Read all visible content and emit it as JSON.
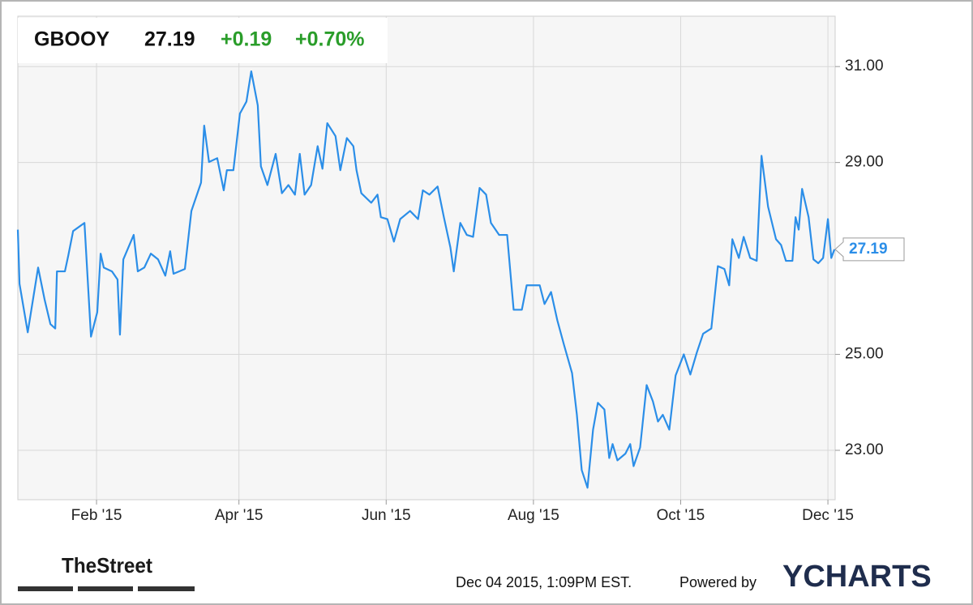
{
  "chart_data": {
    "type": "line",
    "header": {
      "ticker": "GBOOY",
      "price": "27.19",
      "change": "+0.19",
      "change_percent": "+0.70%"
    },
    "x": [
      -1.6,
      -0.9,
      2.5,
      6.8,
      9.5,
      11.9,
      13.9,
      14.6,
      17.9,
      19.3,
      21.3,
      26.0,
      28.7,
      31.3,
      32.7,
      34.0,
      37.4,
      39.7,
      40.7,
      42.1,
      46.4,
      48.1,
      50.8,
      53.5,
      56.5,
      59.5,
      61.5,
      62.9,
      67.6,
      70.3,
      74.3,
      75.6,
      77.6,
      81.0,
      83.7,
      85.0,
      87.7,
      90.4,
      93.1,
      95.1,
      97.8,
      99.1,
      101.8,
      105.2,
      107.8,
      110.5,
      113.2,
      115.2,
      117.2,
      119.9,
      122.6,
      124.6,
      126.6,
      130.0,
      132.0,
      134.7,
      137.4,
      138.7,
      140.7,
      144.8,
      147.4,
      148.8,
      151.5,
      154.2,
      156.8,
      160.9,
      164.2,
      166.2,
      168.9,
      172.3,
      174.9,
      177.6,
      179.0,
      181.7,
      184.4,
      187.0,
      189.7,
      192.4,
      194.4,
      197.8,
      201.1,
      203.8,
      207.2,
      209.2,
      214.6,
      216.6,
      219.3,
      221.9,
      224.6,
      228.0,
      230.0,
      232.0,
      234.4,
      236.7,
      238.7,
      241.4,
      243.4,
      244.8,
      246.8,
      250.1,
      252.1,
      253.5,
      256.2,
      258.9,
      261.5,
      263.6,
      265.6,
      268.3,
      270.9,
      274.3,
      277.0,
      279.7,
      282.3,
      285.7,
      288.4,
      291.1,
      293.1,
      294.4,
      297.1,
      299.1,
      301.8,
      304.5,
      306.5,
      309.2,
      312.5,
      314.6,
      316.6,
      319.3,
      320.6,
      321.9,
      323.3,
      326.0,
      328.0,
      330.0,
      332.0,
      334.0,
      335.4,
      336.7
    ],
    "series": [
      {
        "color": "#2b8ee8",
        "values": [
          27.6,
          26.47,
          25.46,
          26.81,
          26.14,
          25.63,
          25.54,
          26.73,
          26.73,
          27.06,
          27.57,
          27.74,
          25.37,
          25.88,
          27.1,
          26.81,
          26.73,
          26.56,
          25.41,
          26.98,
          27.49,
          26.73,
          26.81,
          27.1,
          26.98,
          26.64,
          27.15,
          26.68,
          26.78,
          27.99,
          28.58,
          29.77,
          29.01,
          29.09,
          28.42,
          28.84,
          28.84,
          30.02,
          30.27,
          30.9,
          30.19,
          28.92,
          28.53,
          29.18,
          28.36,
          28.53,
          28.33,
          29.18,
          28.33,
          28.53,
          29.34,
          28.87,
          29.82,
          29.55,
          28.84,
          29.51,
          29.34,
          28.84,
          28.36,
          28.16,
          28.33,
          27.86,
          27.82,
          27.35,
          27.82,
          27.99,
          27.82,
          28.42,
          28.33,
          28.5,
          27.86,
          27.23,
          26.73,
          27.74,
          27.49,
          27.45,
          28.47,
          28.33,
          27.74,
          27.49,
          27.49,
          25.93,
          25.93,
          26.44,
          26.44,
          26.05,
          26.3,
          25.71,
          25.21,
          24.61,
          23.74,
          22.59,
          22.22,
          23.43,
          23.99,
          23.85,
          22.84,
          23.13,
          22.79,
          22.93,
          23.13,
          22.67,
          23.06,
          24.36,
          24.02,
          23.6,
          23.74,
          23.43,
          24.56,
          25.0,
          24.58,
          25.04,
          25.43,
          25.54,
          26.84,
          26.78,
          26.44,
          27.4,
          27.01,
          27.45,
          27.01,
          26.95,
          29.14,
          28.08,
          27.4,
          27.28,
          26.95,
          26.95,
          27.86,
          27.6,
          28.45,
          27.86,
          26.98,
          26.9,
          27.01,
          27.82,
          27.01,
          27.19
        ]
      }
    ],
    "xlim": [
      -1.6,
      337
    ],
    "xticks": [
      {
        "value": 31,
        "label": "Feb '15"
      },
      {
        "value": 90,
        "label": "Apr '15"
      },
      {
        "value": 151,
        "label": "Jun '15"
      },
      {
        "value": 212,
        "label": "Aug '15"
      },
      {
        "value": 273,
        "label": "Oct '15"
      },
      {
        "value": 334,
        "label": "Dec '15"
      }
    ],
    "ylim": [
      21.97,
      32.05
    ],
    "yticks": [
      {
        "value": 23,
        "label": "23.00"
      },
      {
        "value": 25,
        "label": "25.00"
      },
      {
        "value": 29,
        "label": "29.00"
      },
      {
        "value": 31,
        "label": "31.00"
      }
    ],
    "grid": true,
    "footer": {
      "source": "TheStreet",
      "timestamp": "Dec 04 2015, 1:09PM EST.",
      "powered_by": "Powered by",
      "brand": "YCHARTS"
    }
  }
}
